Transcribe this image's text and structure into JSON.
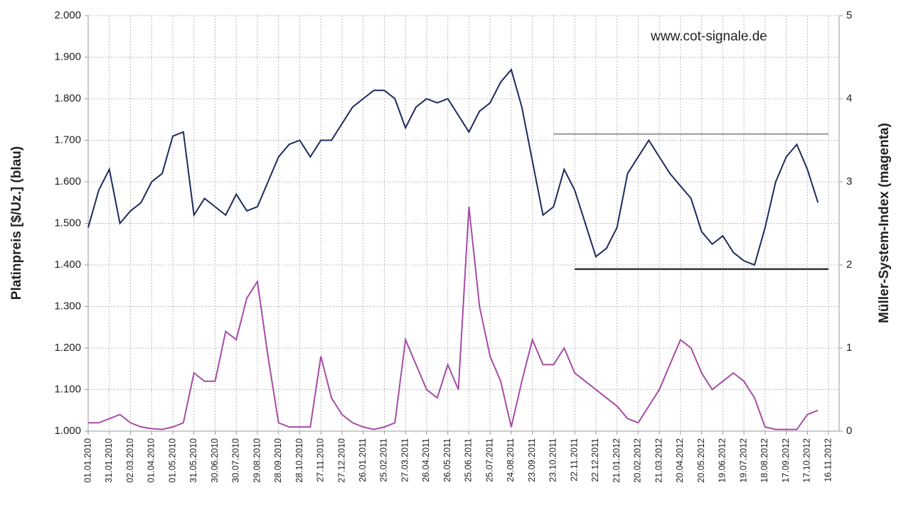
{
  "chart_data": {
    "type": "line",
    "annotation": "www.cot-signale.de",
    "ylabel": "Platinpreis [$/Uz.] (blau)",
    "y2label": "Müller-System-Index (magenta)",
    "x": [
      "01.01.2010",
      "16.01.2010",
      "31.01.2010",
      "15.02.2010",
      "02.03.2010",
      "17.03.2010",
      "01.04.2010",
      "16.04.2010",
      "01.05.2010",
      "16.05.2010",
      "31.05.2010",
      "15.06.2010",
      "30.06.2010",
      "15.07.2010",
      "30.07.2010",
      "14.08.2010",
      "29.08.2010",
      "13.09.2010",
      "28.09.2010",
      "13.10.2010",
      "28.10.2010",
      "12.11.2010",
      "27.11.2010",
      "12.12.2010",
      "27.12.2010",
      "11.01.2011",
      "26.01.2011",
      "10.02.2011",
      "25.02.2011",
      "12.03.2011",
      "27.03.2011",
      "11.04.2011",
      "26.04.2011",
      "11.05.2011",
      "26.05.2011",
      "10.06.2011",
      "25.06.2011",
      "10.07.2011",
      "25.07.2011",
      "09.08.2011",
      "24.08.2011",
      "08.09.2011",
      "23.09.2011",
      "08.10.2011",
      "23.10.2011",
      "07.11.2011",
      "22.11.2011",
      "07.12.2011",
      "22.12.2011",
      "06.01.2012",
      "21.01.2012",
      "05.02.2012",
      "20.02.2012",
      "06.03.2012",
      "21.03.2012",
      "05.04.2012",
      "20.04.2012",
      "05.05.2012",
      "20.05.2012",
      "04.06.2012",
      "19.06.2012",
      "04.07.2012",
      "19.07.2012",
      "03.08.2012",
      "18.08.2012",
      "02.09.2012",
      "17.09.2012",
      "02.10.2012",
      "17.10.2012",
      "01.11.2012"
    ],
    "series": [
      {
        "name": "Platinpreis",
        "color": "#1f2a5c",
        "values": [
          1.49,
          1.58,
          1.63,
          1.5,
          1.53,
          1.55,
          1.6,
          1.62,
          1.71,
          1.72,
          1.52,
          1.56,
          1.54,
          1.52,
          1.57,
          1.53,
          1.54,
          1.6,
          1.66,
          1.69,
          1.7,
          1.66,
          1.7,
          1.7,
          1.74,
          1.78,
          1.8,
          1.82,
          1.82,
          1.8,
          1.73,
          1.78,
          1.8,
          1.79,
          1.8,
          1.76,
          1.72,
          1.77,
          1.79,
          1.84,
          1.87,
          1.78,
          1.65,
          1.52,
          1.54,
          1.63,
          1.58,
          1.5,
          1.42,
          1.44,
          1.49,
          1.62,
          1.66,
          1.7,
          1.66,
          1.62,
          1.59,
          1.56,
          1.48,
          1.45,
          1.47,
          1.43,
          1.41,
          1.4,
          1.49,
          1.6,
          1.66,
          1.69,
          1.63,
          1.55
        ]
      },
      {
        "name": "Müller-System-Index",
        "color": "#a64ca6",
        "axis": "y2",
        "values": [
          0.1,
          0.1,
          0.15,
          0.2,
          0.1,
          0.05,
          0.03,
          0.02,
          0.05,
          0.1,
          0.7,
          0.6,
          0.6,
          1.2,
          1.1,
          1.6,
          1.8,
          0.9,
          0.1,
          0.05,
          0.05,
          0.05,
          0.9,
          0.4,
          0.2,
          0.1,
          0.05,
          0.02,
          0.05,
          0.1,
          1.1,
          0.8,
          0.5,
          0.4,
          0.8,
          0.5,
          2.7,
          1.5,
          0.9,
          0.6,
          0.05,
          0.6,
          1.1,
          0.8,
          0.8,
          1.0,
          0.7,
          0.6,
          0.5,
          0.4,
          0.3,
          0.15,
          0.1,
          0.3,
          0.5,
          0.8,
          1.1,
          1.0,
          0.7,
          0.5,
          0.6,
          0.7,
          0.6,
          0.4,
          0.05,
          0.02,
          0.02,
          0.02,
          0.2,
          0.25
        ]
      }
    ],
    "reference_lines": [
      {
        "value": 1.715,
        "color": "#aaaaaa",
        "x": [
          "23.10.2011",
          "16.11.2012"
        ]
      },
      {
        "value": 1.39,
        "color": "#333333",
        "x": [
          "22.11.2011",
          "16.11.2012"
        ]
      }
    ],
    "xlim": [
      "01.01.2010",
      "01.12.2012"
    ],
    "xticks": [
      "01.01.2010",
      "31.01.2010",
      "02.03.2010",
      "01.04.2010",
      "01.05.2010",
      "31.05.2010",
      "30.06.2010",
      "30.07.2010",
      "29.08.2010",
      "28.09.2010",
      "28.10.2010",
      "27.11.2010",
      "27.12.2010",
      "26.01.2011",
      "25.02.2011",
      "27.03.2011",
      "26.04.2011",
      "26.05.2011",
      "25.06.2011",
      "25.07.2011",
      "24.08.2011",
      "23.09.2011",
      "23.10.2011",
      "22.11.2011",
      "22.12.2011",
      "21.01.2012",
      "20.02.2012",
      "21.03.2012",
      "20.04.2012",
      "20.05.2012",
      "19.06.2012",
      "19.07.2012",
      "18.08.2012",
      "17.09.2012",
      "17.10.2012",
      "16.11.2012"
    ],
    "ylim": [
      1,
      2
    ],
    "yticks": [
      {
        "value": 1,
        "label": "1.000"
      },
      {
        "value": 1.1,
        "label": "1.100"
      },
      {
        "value": 1.2,
        "label": "1.200"
      },
      {
        "value": 1.3,
        "label": "1.300"
      },
      {
        "value": 1.4,
        "label": "1.400"
      },
      {
        "value": 1.5,
        "label": "1.500"
      },
      {
        "value": 1.6,
        "label": "1.600"
      },
      {
        "value": 1.7,
        "label": "1.700"
      },
      {
        "value": 1.8,
        "label": "1.800"
      },
      {
        "value": 1.9,
        "label": "1.900"
      },
      {
        "value": 2,
        "label": "2.000"
      }
    ],
    "y2lim": [
      0,
      5
    ],
    "y2ticks": [
      0,
      1,
      2,
      3,
      4,
      5
    ],
    "grid": true
  }
}
